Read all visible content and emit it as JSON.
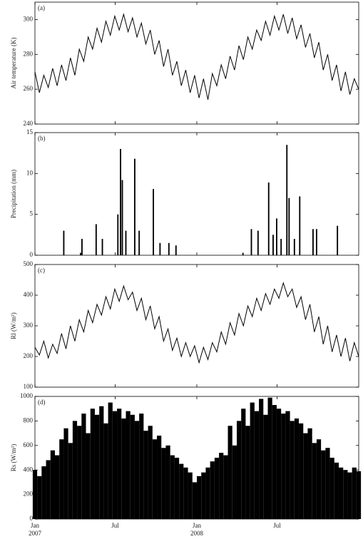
{
  "chart_data": [
    {
      "type": "line",
      "label": "(a)",
      "ylabel": "Air temperature (K)",
      "color": "#000000",
      "ylim": [
        240,
        310
      ],
      "yticks": [
        240,
        260,
        280,
        300
      ],
      "x": [
        0,
        10,
        20,
        30,
        40,
        50,
        60,
        70,
        80,
        90,
        100,
        110,
        120,
        130,
        140,
        150,
        160,
        170,
        180,
        190,
        200,
        210,
        220,
        230,
        240,
        250,
        260,
        270,
        280,
        290,
        300,
        310,
        320,
        330,
        340,
        350,
        360,
        370,
        380,
        390,
        400,
        410,
        420,
        430,
        440,
        450,
        460,
        470,
        480,
        490,
        500,
        510,
        520,
        530,
        540,
        550,
        560,
        570,
        580,
        590,
        600,
        610,
        620,
        630,
        640,
        650,
        660,
        670,
        680,
        690,
        700,
        710,
        720,
        730
      ],
      "values": [
        270,
        258,
        268,
        261,
        272,
        262,
        274,
        265,
        278,
        268,
        283,
        276,
        290,
        283,
        295,
        287,
        299,
        291,
        302,
        294,
        303,
        293,
        301,
        290,
        298,
        286,
        294,
        280,
        288,
        273,
        283,
        268,
        276,
        262,
        271,
        258,
        268,
        255,
        266,
        254,
        269,
        262,
        274,
        266,
        279,
        271,
        285,
        277,
        290,
        283,
        294,
        288,
        299,
        291,
        302,
        294,
        303,
        292,
        301,
        289,
        297,
        284,
        292,
        278,
        287,
        271,
        280,
        265,
        274,
        259,
        270,
        257,
        266,
        260
      ]
    },
    {
      "type": "bar",
      "label": "(b)",
      "ylabel": "Precipitation (mm)",
      "color": "#000000",
      "ylim": [
        0,
        15
      ],
      "yticks": [
        0,
        5,
        10,
        15
      ],
      "x": [
        65,
        103,
        106,
        138,
        152,
        187,
        193,
        197,
        205,
        225,
        235,
        267,
        282,
        302,
        318,
        469,
        488,
        503,
        527,
        537,
        545,
        555,
        568,
        573,
        585,
        597,
        627,
        635,
        682
      ],
      "values": [
        3,
        0.3,
        2,
        3.8,
        2,
        5,
        13,
        9.2,
        3,
        11.8,
        3,
        8.1,
        1.5,
        1.5,
        1.2,
        0.3,
        3.2,
        3,
        8.9,
        2.5,
        4.5,
        2,
        13.5,
        7,
        2,
        7.2,
        3.2,
        3.2,
        3.6
      ]
    },
    {
      "type": "line",
      "label": "(c)",
      "ylabel": "Rl (W/m²)",
      "color": "#000000",
      "ylim": [
        100,
        500
      ],
      "yticks": [
        100,
        200,
        300,
        400,
        500
      ],
      "x": [
        0,
        10,
        20,
        30,
        40,
        50,
        60,
        70,
        80,
        90,
        100,
        110,
        120,
        130,
        140,
        150,
        160,
        170,
        180,
        190,
        200,
        210,
        220,
        230,
        240,
        250,
        260,
        270,
        280,
        290,
        300,
        310,
        320,
        330,
        340,
        350,
        360,
        370,
        380,
        390,
        400,
        410,
        420,
        430,
        440,
        450,
        460,
        470,
        480,
        490,
        500,
        510,
        520,
        530,
        540,
        550,
        560,
        570,
        580,
        590,
        600,
        610,
        620,
        630,
        640,
        650,
        660,
        670,
        680,
        690,
        700,
        710,
        720,
        730
      ],
      "values": [
        230,
        205,
        250,
        195,
        240,
        210,
        275,
        225,
        300,
        250,
        320,
        280,
        350,
        310,
        370,
        335,
        395,
        355,
        420,
        380,
        430,
        385,
        410,
        350,
        390,
        320,
        365,
        290,
        330,
        250,
        290,
        220,
        260,
        200,
        245,
        200,
        235,
        180,
        230,
        190,
        245,
        215,
        280,
        240,
        310,
        270,
        340,
        300,
        365,
        330,
        390,
        350,
        405,
        370,
        420,
        390,
        440,
        395,
        420,
        360,
        395,
        320,
        370,
        280,
        330,
        240,
        300,
        215,
        270,
        200,
        260,
        185,
        245,
        200
      ]
    },
    {
      "type": "bar",
      "label": "(d)",
      "ylabel": "Rs (W/m²)",
      "color": "#000000",
      "ylim": [
        0,
        1000
      ],
      "yticks": [
        0,
        200,
        400,
        600,
        800,
        1000
      ],
      "xlim": [
        0,
        730
      ],
      "xticks": [
        {
          "value": 0,
          "label": "Jan"
        },
        {
          "value": 181,
          "label": "Jul"
        },
        {
          "value": 365,
          "label": "Jan"
        },
        {
          "value": 546,
          "label": "Jul"
        }
      ],
      "annotations": [
        {
          "text": "2007",
          "x": 0
        },
        {
          "text": "2008",
          "x": 365
        }
      ],
      "x": [
        0,
        10,
        20,
        30,
        40,
        50,
        60,
        70,
        80,
        90,
        100,
        110,
        120,
        130,
        140,
        150,
        160,
        170,
        180,
        190,
        200,
        210,
        220,
        230,
        240,
        250,
        260,
        270,
        280,
        290,
        300,
        310,
        320,
        330,
        340,
        350,
        360,
        370,
        380,
        390,
        400,
        410,
        420,
        430,
        440,
        450,
        460,
        470,
        480,
        490,
        500,
        510,
        520,
        530,
        540,
        550,
        560,
        570,
        580,
        590,
        600,
        610,
        620,
        630,
        640,
        650,
        660,
        670,
        680,
        690,
        700,
        710,
        720,
        730
      ],
      "values": [
        400,
        350,
        430,
        480,
        560,
        520,
        650,
        740,
        620,
        800,
        760,
        860,
        700,
        900,
        850,
        920,
        780,
        950,
        880,
        900,
        820,
        880,
        850,
        800,
        860,
        720,
        760,
        650,
        680,
        580,
        600,
        520,
        500,
        450,
        420,
        380,
        300,
        350,
        380,
        420,
        470,
        500,
        540,
        520,
        760,
        600,
        800,
        900,
        760,
        950,
        880,
        980,
        850,
        990,
        930,
        900,
        860,
        880,
        800,
        820,
        780,
        700,
        740,
        620,
        650,
        560,
        580,
        500,
        460,
        420,
        400,
        380,
        420,
        390
      ]
    }
  ]
}
